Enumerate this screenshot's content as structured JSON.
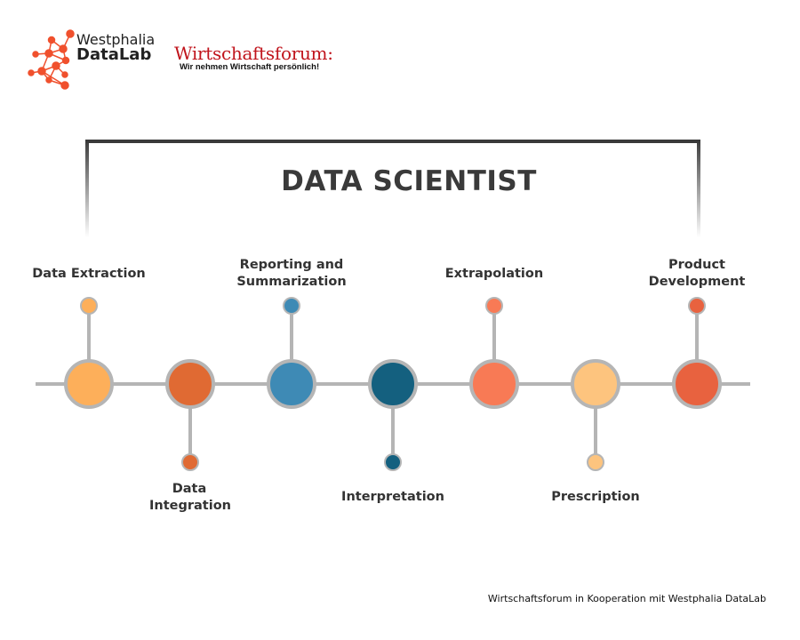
{
  "logos": {
    "datalab": {
      "line1": "Westphalia",
      "line2": "DataLab",
      "color": "#F0502D"
    },
    "wirtschaftsforum": {
      "name": "Wirtschaftsforum:",
      "tagline": "Wir nehmen Wirtschaft persönlich!",
      "color": "#C0141C"
    }
  },
  "title": "DATA SCIENTIST",
  "steps": [
    {
      "label": "Data Extraction",
      "position": "above",
      "color": "#FDAF5A"
    },
    {
      "label": "Data Integration",
      "position": "below",
      "color": "#E06A33"
    },
    {
      "label": "Reporting and Summarization",
      "position": "above",
      "color": "#3E8AB5"
    },
    {
      "label": "Interpretation",
      "position": "below",
      "color": "#14607F"
    },
    {
      "label": "Extrapolation",
      "position": "above",
      "color": "#F87A55"
    },
    {
      "label": "Prescription",
      "position": "below",
      "color": "#FDC47E"
    },
    {
      "label": "Product Development",
      "position": "above",
      "color": "#E8623F"
    }
  ],
  "footer": "Wirtschaftsforum in Kooperation mit Westphalia DataLab"
}
